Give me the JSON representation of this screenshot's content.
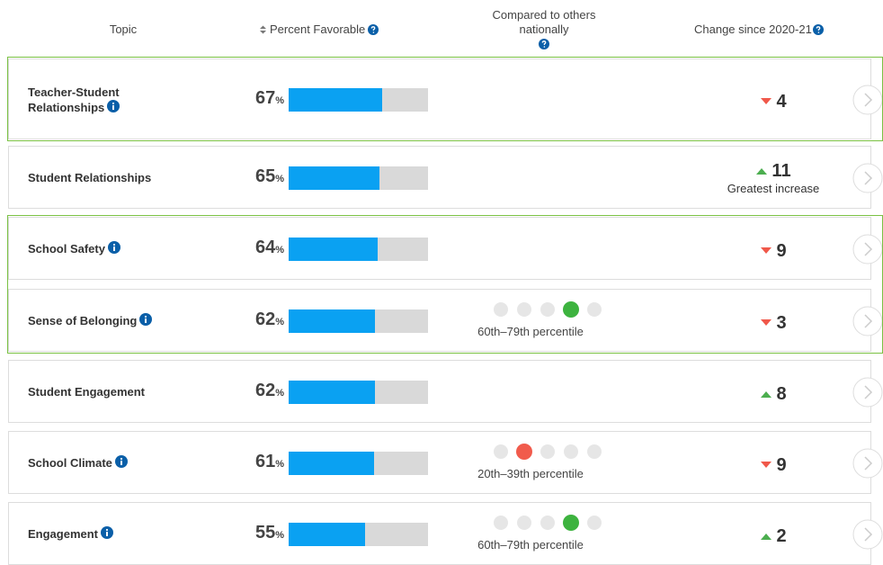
{
  "header": {
    "topic": "Topic",
    "percent": "Percent Favorable",
    "compared": "Compared to others nationally",
    "change": "Change since 2020-21"
  },
  "rows": [
    {
      "topic": "Teacher-Student Relationships",
      "info": true,
      "percent": 67,
      "unit": "%",
      "change": 4,
      "direction": "down",
      "highlighted": true
    },
    {
      "topic": "Student Relationships",
      "info": false,
      "percent": 65,
      "unit": "%",
      "change": 11,
      "direction": "up",
      "note": "Greatest increase",
      "highlighted": false
    },
    {
      "topic": "School Safety",
      "info": true,
      "percent": 64,
      "unit": "%",
      "change": 9,
      "direction": "down",
      "highlighted": true
    },
    {
      "topic": "Sense of Belonging",
      "info": true,
      "percent": 62,
      "unit": "%",
      "percentile": {
        "label": "60th–79th percentile",
        "rank": 4,
        "color": "#3db33f"
      },
      "change": 3,
      "direction": "down",
      "highlighted": true
    },
    {
      "topic": "Student Engagement",
      "info": false,
      "percent": 62,
      "unit": "%",
      "change": 8,
      "direction": "up",
      "highlighted": false
    },
    {
      "topic": "School Climate",
      "info": true,
      "percent": 61,
      "unit": "%",
      "percentile": {
        "label": "20th–39th percentile",
        "rank": 2,
        "color": "#f15b4c"
      },
      "change": 9,
      "direction": "down",
      "highlighted": false
    },
    {
      "topic": "Engagement",
      "info": true,
      "percent": 55,
      "unit": "%",
      "percentile": {
        "label": "60th–79th percentile",
        "rank": 4,
        "color": "#3db33f"
      },
      "change": 2,
      "direction": "up",
      "highlighted": false
    }
  ]
}
